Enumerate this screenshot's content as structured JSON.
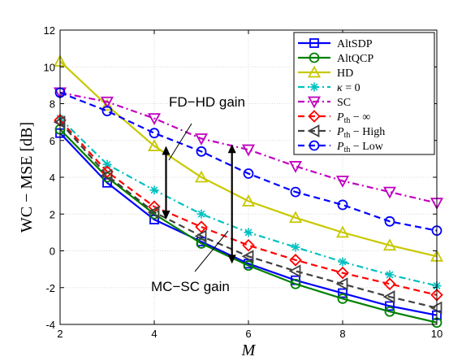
{
  "chart_data": {
    "type": "line",
    "xlabel": "M",
    "ylabel": "WC − MSE  [dB]",
    "x": [
      2,
      3,
      4,
      5,
      6,
      7,
      8,
      9,
      10
    ],
    "xlim": [
      2,
      10
    ],
    "ylim": [
      -4,
      12
    ],
    "xticks": [
      2,
      4,
      6,
      8,
      10
    ],
    "yticks": [
      -4,
      -2,
      0,
      2,
      4,
      6,
      8,
      10,
      12
    ],
    "legend_position": "top-right",
    "series": [
      {
        "name": "AltSDP",
        "color": "#0000ff",
        "dash": "solid",
        "marker": "square",
        "values": [
          6.4,
          3.7,
          1.7,
          0.5,
          -0.7,
          -1.6,
          -2.3,
          -3.0,
          -3.5
        ]
      },
      {
        "name": "AltQCP",
        "color": "#008000",
        "dash": "solid",
        "marker": "circle",
        "values": [
          6.6,
          4.0,
          2.0,
          0.4,
          -0.8,
          -1.8,
          -2.6,
          -3.3,
          -3.9
        ]
      },
      {
        "name": "HD",
        "color": "#c8c800",
        "dash": "solid",
        "marker": "triangle-up",
        "values": [
          10.3,
          7.9,
          5.7,
          4.0,
          2.7,
          1.8,
          1.0,
          0.3,
          -0.3
        ]
      },
      {
        "name": "κ = 0",
        "color": "#00c0c0",
        "dash": "dashdot",
        "marker": "asterisk",
        "values": [
          7.2,
          4.7,
          3.3,
          2.0,
          1.0,
          0.2,
          -0.6,
          -1.3,
          -1.9
        ]
      },
      {
        "name": "SC",
        "color": "#c000c0",
        "dash": "dashdot",
        "marker": "triangle-down",
        "values": [
          8.6,
          8.1,
          7.2,
          6.1,
          5.5,
          4.6,
          3.8,
          3.2,
          2.6
        ]
      },
      {
        "name": "P_th − ∞",
        "color": "#ff0000",
        "dash": "dashed",
        "marker": "diamond",
        "values": [
          7.1,
          4.3,
          2.4,
          1.3,
          0.3,
          -0.5,
          -1.2,
          -1.8,
          -2.4
        ]
      },
      {
        "name": "P_th − High",
        "color": "#404040",
        "dash": "dashed",
        "marker": "triangle-left",
        "values": [
          7.0,
          4.1,
          2.1,
          0.8,
          -0.3,
          -1.1,
          -1.8,
          -2.5,
          -3.1
        ]
      },
      {
        "name": "P_th − Low",
        "color": "#0000ff",
        "dash": "dashed",
        "marker": "circle",
        "values": [
          8.6,
          7.6,
          6.4,
          5.4,
          4.2,
          3.2,
          2.5,
          1.6,
          1.1
        ]
      }
    ],
    "annotations": [
      {
        "text": "FD−HD gain",
        "arrow_x": 4.25,
        "arrow_y": [
          1.7,
          5.7
        ]
      },
      {
        "text": "MC−SC gain",
        "arrow_x": 5.65,
        "arrow_y": [
          -0.7,
          5.8
        ]
      }
    ]
  },
  "legend_labels": {
    "altsdp": "AltSDP",
    "altqcp": "AltQCP",
    "hd": "HD",
    "kappa_sym": "κ",
    "kappa_rest": " = 0",
    "sc": "SC",
    "p_sym": "P",
    "p_sub": "th",
    "inf_rest": " − ∞",
    "high_rest": " − High",
    "low_rest": " − Low"
  }
}
